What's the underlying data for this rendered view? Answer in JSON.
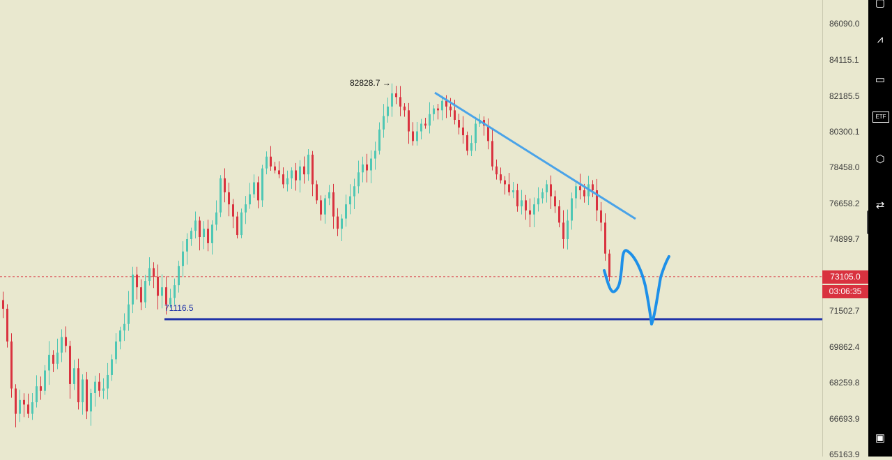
{
  "chart_data": {
    "type": "candlestick",
    "price_axis": {
      "ticks": [
        "86090.0",
        "84115.1",
        "82185.5",
        "80300.1",
        "78458.0",
        "76658.2",
        "74899.7",
        "71502.7",
        "69862.4",
        "68259.8",
        "66693.9",
        "65163.9"
      ],
      "range": [
        65163.9,
        86090.0
      ],
      "scale": "log"
    },
    "current_price": {
      "label": "73105.0",
      "value": 73105.0,
      "countdown": "03:06:35",
      "line_color": "#d9323f"
    },
    "annotations": {
      "high_label": "82828.7 →",
      "high_value": 82828.7,
      "support_label": "71116.5",
      "support_value": 71116.5,
      "support_color": "#1f32a8",
      "trendline_color": "#4aa3e8",
      "drawn_projection_color": "#1e90e8"
    },
    "up_color": "#4fc7b4",
    "down_color": "#d9323f",
    "closes": [
      71.6,
      70.1,
      68.0,
      66.9,
      67.5,
      67.3,
      66.9,
      67.4,
      68.1,
      67.9,
      68.8,
      69.5,
      69.1,
      69.6,
      70.3,
      69.9,
      68.2,
      68.9,
      67.4,
      68.4,
      67.0,
      67.8,
      68.3,
      67.9,
      68.0,
      68.6,
      69.3,
      70.1,
      70.6,
      70.9,
      71.8,
      73.2,
      72.6,
      71.9,
      72.9,
      73.5,
      73.1,
      72.2,
      72.6,
      71.8,
      72.1,
      72.7,
      73.6,
      74.3,
      74.9,
      75.3,
      75.8,
      75.0,
      75.4,
      74.7,
      75.6,
      76.2,
      77.9,
      77.2,
      76.6,
      76.0,
      75.1,
      76.2,
      76.6,
      77.1,
      77.7,
      76.8,
      78.4,
      79.0,
      78.5,
      78.3,
      78.1,
      77.6,
      77.9,
      78.3,
      77.8,
      78.5,
      78.1,
      79.1,
      77.6,
      76.8,
      76.1,
      76.9,
      77.2,
      76.0,
      75.4,
      75.9,
      76.6,
      77.0,
      77.5,
      78.2,
      78.6,
      78.3,
      78.9,
      79.3,
      80.4,
      81.1,
      81.6,
      82.3,
      82.1,
      81.6,
      81.4,
      80.3,
      79.8,
      80.3,
      80.7,
      80.6,
      81.2,
      81.5,
      81.4,
      81.9,
      81.6,
      81.4,
      80.9,
      80.5,
      80.1,
      79.3,
      79.7,
      80.7,
      80.9,
      80.6,
      79.8,
      78.5,
      78.1,
      77.8,
      77.6,
      77.2,
      77.3,
      76.5,
      76.8,
      76.3,
      76.1,
      76.6,
      76.9,
      77.2,
      77.6,
      77.0,
      76.5,
      75.7,
      74.9,
      75.8,
      76.9,
      77.5,
      77.3,
      77.0,
      77.6,
      77.3,
      76.3,
      75.7,
      74.2,
      73.1
    ]
  }
}
